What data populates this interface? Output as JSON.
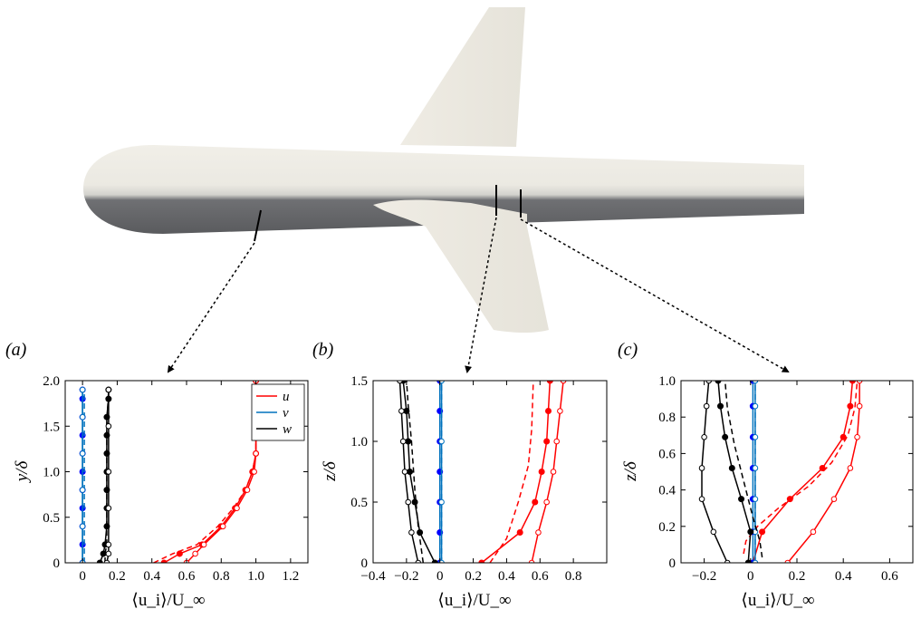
{
  "colors": {
    "u": "#ff0000",
    "v": "#0072bd",
    "w": "#000000",
    "v_marker": "#0000ff"
  },
  "chart_data": [
    {
      "type": "line",
      "panel_label": "(a)",
      "xlabel": "⟨u_i⟩/U_∞",
      "ylabel": "y/δ",
      "xlim": [
        -0.1,
        1.3
      ],
      "ylim": [
        0,
        2.0
      ],
      "xticks": [
        "0",
        "0.2",
        "0.4",
        "0.6",
        "0.8",
        "1.0",
        "1.2"
      ],
      "xtick_values": [
        0,
        0.2,
        0.4,
        0.6,
        0.8,
        1.0,
        1.2
      ],
      "yticks": [
        "0",
        "0.5",
        "1.0",
        "1.5",
        "2.0"
      ],
      "ytick_values": [
        0,
        0.5,
        1.0,
        1.5,
        2.0
      ],
      "legend": {
        "position": "top-right",
        "entries": [
          "u",
          "v",
          "w"
        ]
      },
      "series": [
        {
          "component": "u",
          "style": "solid",
          "marker": "filled",
          "points": [
            [
              0.47,
              0.0
            ],
            [
              0.56,
              0.1
            ],
            [
              0.69,
              0.2
            ],
            [
              0.8,
              0.4
            ],
            [
              0.88,
              0.6
            ],
            [
              0.94,
              0.8
            ],
            [
              0.98,
              1.0
            ],
            [
              1.0,
              1.2
            ],
            [
              1.0,
              1.5
            ],
            [
              1.0,
              2.0
            ]
          ]
        },
        {
          "component": "u",
          "style": "dashed",
          "marker": "none",
          "points": [
            [
              0.41,
              0.0
            ],
            [
              0.52,
              0.1
            ],
            [
              0.66,
              0.2
            ],
            [
              0.78,
              0.4
            ],
            [
              0.87,
              0.6
            ],
            [
              0.94,
              0.8
            ],
            [
              0.98,
              1.0
            ],
            [
              1.0,
              1.2
            ],
            [
              1.0,
              1.5
            ],
            [
              1.0,
              2.0
            ]
          ]
        },
        {
          "component": "u",
          "style": "solid",
          "marker": "open",
          "points": [
            [
              0.6,
              0.0
            ],
            [
              0.65,
              0.1
            ],
            [
              0.7,
              0.2
            ],
            [
              0.81,
              0.4
            ],
            [
              0.89,
              0.6
            ],
            [
              0.95,
              0.8
            ],
            [
              0.99,
              1.0
            ],
            [
              1.0,
              1.2
            ],
            [
              1.0,
              1.5
            ],
            [
              1.0,
              2.0
            ]
          ]
        },
        {
          "component": "v",
          "style": "solid",
          "marker": "filled",
          "points": [
            [
              0.0,
              0.0
            ],
            [
              0.0,
              0.2
            ],
            [
              0.0,
              0.4
            ],
            [
              0.0,
              0.6
            ],
            [
              0.0,
              0.8
            ],
            [
              0.0,
              1.0
            ],
            [
              0.0,
              1.2
            ],
            [
              0.0,
              1.4
            ],
            [
              0.0,
              1.6
            ],
            [
              0.0,
              1.8
            ],
            [
              0.0,
              1.9
            ]
          ]
        },
        {
          "component": "v",
          "style": "dashed",
          "marker": "none",
          "points": [
            [
              0.01,
              0.0
            ],
            [
              0.01,
              0.5
            ],
            [
              0.01,
              1.0
            ],
            [
              0.01,
              1.5
            ],
            [
              0.01,
              1.9
            ]
          ]
        },
        {
          "component": "v",
          "style": "solid",
          "marker": "open",
          "points": [
            [
              0.0,
              0.0
            ],
            [
              0.0,
              0.4
            ],
            [
              0.0,
              0.8
            ],
            [
              0.0,
              1.2
            ],
            [
              0.0,
              1.6
            ],
            [
              0.0,
              1.9
            ]
          ]
        },
        {
          "component": "w",
          "style": "solid",
          "marker": "filled",
          "points": [
            [
              0.1,
              0.0
            ],
            [
              0.12,
              0.1
            ],
            [
              0.13,
              0.2
            ],
            [
              0.14,
              0.4
            ],
            [
              0.14,
              0.6
            ],
            [
              0.14,
              0.8
            ],
            [
              0.14,
              1.0
            ],
            [
              0.14,
              1.2
            ],
            [
              0.14,
              1.4
            ],
            [
              0.14,
              1.6
            ],
            [
              0.15,
              1.8
            ],
            [
              0.15,
              1.9
            ]
          ]
        },
        {
          "component": "w",
          "style": "dashed",
          "marker": "none",
          "points": [
            [
              0.13,
              0.0
            ],
            [
              0.13,
              0.1
            ],
            [
              0.14,
              0.2
            ],
            [
              0.14,
              0.6
            ],
            [
              0.14,
              1.0
            ],
            [
              0.14,
              1.5
            ],
            [
              0.15,
              1.9
            ]
          ]
        },
        {
          "component": "w",
          "style": "solid",
          "marker": "open",
          "points": [
            [
              0.14,
              0.0
            ],
            [
              0.15,
              0.1
            ],
            [
              0.15,
              0.2
            ],
            [
              0.15,
              0.6
            ],
            [
              0.15,
              1.0
            ],
            [
              0.15,
              1.5
            ],
            [
              0.15,
              1.9
            ]
          ]
        }
      ]
    },
    {
      "type": "line",
      "panel_label": "(b)",
      "xlabel": "⟨u_i⟩/U_∞",
      "ylabel": "z/δ",
      "xlim": [
        -0.4,
        1.0
      ],
      "ylim": [
        0,
        1.5
      ],
      "xticks": [
        "−0.4",
        "−0.2",
        "0",
        "0.2",
        "0.4",
        "0.6",
        "0.8"
      ],
      "xtick_values": [
        -0.4,
        -0.2,
        0,
        0.2,
        0.4,
        0.6,
        0.8
      ],
      "yticks": [
        "0",
        "0.5",
        "1.0",
        "1.5"
      ],
      "ytick_values": [
        0,
        0.5,
        1.0,
        1.5
      ],
      "series": [
        {
          "component": "u",
          "style": "solid",
          "marker": "filled",
          "points": [
            [
              0.25,
              0.0
            ],
            [
              0.48,
              0.25
            ],
            [
              0.57,
              0.5
            ],
            [
              0.61,
              0.75
            ],
            [
              0.64,
              1.0
            ],
            [
              0.65,
              1.25
            ],
            [
              0.66,
              1.5
            ]
          ]
        },
        {
          "component": "u",
          "style": "dashed",
          "marker": "none",
          "points": [
            [
              0.3,
              0.0
            ],
            [
              0.4,
              0.2
            ],
            [
              0.47,
              0.5
            ],
            [
              0.53,
              0.8
            ],
            [
              0.55,
              1.1
            ],
            [
              0.56,
              1.5
            ]
          ]
        },
        {
          "component": "u",
          "style": "solid",
          "marker": "open",
          "points": [
            [
              0.55,
              0.0
            ],
            [
              0.59,
              0.25
            ],
            [
              0.64,
              0.5
            ],
            [
              0.68,
              0.75
            ],
            [
              0.7,
              1.0
            ],
            [
              0.72,
              1.25
            ],
            [
              0.74,
              1.5
            ]
          ]
        },
        {
          "component": "v",
          "style": "solid",
          "marker": "filled",
          "points": [
            [
              0.0,
              0.0
            ],
            [
              0.0,
              0.25
            ],
            [
              0.0,
              0.5
            ],
            [
              0.0,
              0.75
            ],
            [
              0.0,
              1.0
            ],
            [
              0.0,
              1.25
            ],
            [
              0.0,
              1.5
            ]
          ]
        },
        {
          "component": "v",
          "style": "dashed",
          "marker": "none",
          "points": [
            [
              0.01,
              0.0
            ],
            [
              0.01,
              0.5
            ],
            [
              0.01,
              1.0
            ],
            [
              0.01,
              1.5
            ]
          ]
        },
        {
          "component": "v",
          "style": "solid",
          "marker": "open",
          "points": [
            [
              0.01,
              0.0
            ],
            [
              0.01,
              0.5
            ],
            [
              0.01,
              1.0
            ],
            [
              0.01,
              1.5
            ]
          ]
        },
        {
          "component": "w",
          "style": "solid",
          "marker": "filled",
          "points": [
            [
              -0.03,
              0.0
            ],
            [
              -0.12,
              0.25
            ],
            [
              -0.15,
              0.5
            ],
            [
              -0.18,
              0.75
            ],
            [
              -0.19,
              1.0
            ],
            [
              -0.2,
              1.25
            ],
            [
              -0.22,
              1.5
            ]
          ]
        },
        {
          "component": "w",
          "style": "dashed",
          "marker": "none",
          "points": [
            [
              -0.1,
              0.0
            ],
            [
              -0.13,
              0.3
            ],
            [
              -0.15,
              0.6
            ],
            [
              -0.17,
              1.0
            ],
            [
              -0.19,
              1.3
            ],
            [
              -0.2,
              1.5
            ]
          ]
        },
        {
          "component": "w",
          "style": "solid",
          "marker": "open",
          "points": [
            [
              -0.13,
              0.0
            ],
            [
              -0.17,
              0.25
            ],
            [
              -0.19,
              0.5
            ],
            [
              -0.21,
              0.75
            ],
            [
              -0.22,
              1.0
            ],
            [
              -0.23,
              1.25
            ],
            [
              -0.24,
              1.5
            ]
          ]
        }
      ]
    },
    {
      "type": "line",
      "panel_label": "(c)",
      "xlabel": "⟨u_i⟩/U_∞",
      "ylabel": "z/δ",
      "xlim": [
        -0.3,
        0.7
      ],
      "ylim": [
        0,
        1.0
      ],
      "xticks": [
        "−0.2",
        "0",
        "0.2",
        "0.4",
        "0.6"
      ],
      "xtick_values": [
        -0.2,
        0,
        0.2,
        0.4,
        0.6
      ],
      "yticks": [
        "0",
        "0.2",
        "0.4",
        "0.6",
        "0.8",
        "1.0"
      ],
      "ytick_values": [
        0,
        0.2,
        0.4,
        0.6,
        0.8,
        1.0
      ],
      "series": [
        {
          "component": "u",
          "style": "solid",
          "marker": "filled",
          "points": [
            [
              0.01,
              0.0
            ],
            [
              0.05,
              0.17
            ],
            [
              0.17,
              0.35
            ],
            [
              0.31,
              0.52
            ],
            [
              0.4,
              0.69
            ],
            [
              0.43,
              0.86
            ],
            [
              0.44,
              1.0
            ]
          ]
        },
        {
          "component": "u",
          "style": "dashed",
          "marker": "none",
          "points": [
            [
              -0.03,
              0.05
            ],
            [
              -0.02,
              0.12
            ],
            [
              0.03,
              0.2
            ],
            [
              0.12,
              0.3
            ],
            [
              0.25,
              0.42
            ],
            [
              0.35,
              0.55
            ],
            [
              0.42,
              0.7
            ],
            [
              0.45,
              0.85
            ],
            [
              0.46,
              1.0
            ]
          ]
        },
        {
          "component": "u",
          "style": "solid",
          "marker": "open",
          "points": [
            [
              0.16,
              0.0
            ],
            [
              0.27,
              0.17
            ],
            [
              0.36,
              0.35
            ],
            [
              0.43,
              0.52
            ],
            [
              0.46,
              0.69
            ],
            [
              0.47,
              0.86
            ],
            [
              0.47,
              1.0
            ]
          ]
        },
        {
          "component": "v",
          "style": "solid",
          "marker": "filled",
          "points": [
            [
              0.01,
              0.0
            ],
            [
              0.01,
              0.17
            ],
            [
              0.01,
              0.35
            ],
            [
              0.01,
              0.52
            ],
            [
              0.01,
              0.69
            ],
            [
              0.01,
              0.86
            ],
            [
              0.01,
              1.0
            ]
          ]
        },
        {
          "component": "v",
          "style": "dashed",
          "marker": "none",
          "points": [
            [
              0.02,
              0.0
            ],
            [
              0.02,
              0.5
            ],
            [
              0.02,
              1.0
            ]
          ]
        },
        {
          "component": "v",
          "style": "solid",
          "marker": "open",
          "points": [
            [
              0.02,
              0.0
            ],
            [
              0.02,
              0.17
            ],
            [
              0.02,
              0.35
            ],
            [
              0.02,
              0.52
            ],
            [
              0.02,
              0.69
            ],
            [
              0.02,
              0.86
            ],
            [
              0.02,
              1.0
            ]
          ]
        },
        {
          "component": "w",
          "style": "solid",
          "marker": "filled",
          "points": [
            [
              -0.01,
              0.0
            ],
            [
              0.0,
              0.17
            ],
            [
              -0.04,
              0.35
            ],
            [
              -0.08,
              0.52
            ],
            [
              -0.11,
              0.69
            ],
            [
              -0.13,
              0.86
            ],
            [
              -0.14,
              1.0
            ]
          ]
        },
        {
          "component": "w",
          "style": "dashed",
          "marker": "none",
          "points": [
            [
              0.05,
              0.03
            ],
            [
              0.04,
              0.12
            ],
            [
              0.01,
              0.25
            ],
            [
              -0.03,
              0.45
            ],
            [
              -0.07,
              0.65
            ],
            [
              -0.1,
              0.85
            ],
            [
              -0.11,
              1.0
            ]
          ]
        },
        {
          "component": "w",
          "style": "solid",
          "marker": "open",
          "points": [
            [
              -0.1,
              0.0
            ],
            [
              -0.16,
              0.17
            ],
            [
              -0.21,
              0.35
            ],
            [
              -0.21,
              0.52
            ],
            [
              -0.2,
              0.69
            ],
            [
              -0.19,
              0.86
            ],
            [
              -0.18,
              1.0
            ]
          ]
        }
      ]
    }
  ]
}
